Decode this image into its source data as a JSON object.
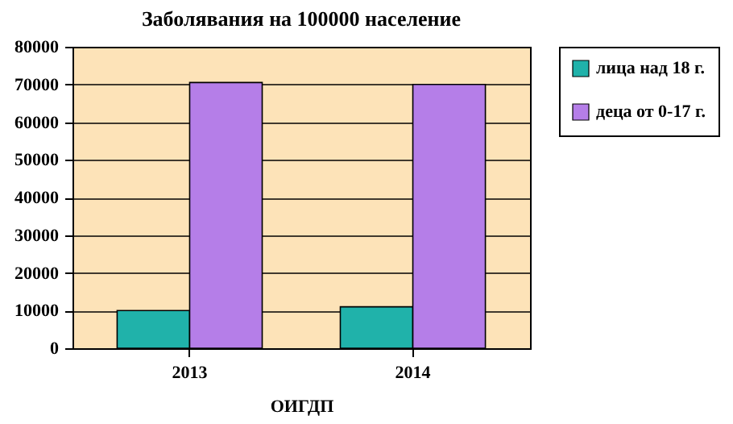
{
  "chart_data": {
    "type": "bar",
    "title": "Заболявания на 100000 население",
    "xlabel": "ОИГДП",
    "categories": [
      "2013",
      "2014"
    ],
    "series": [
      {
        "name": "лица над 18 г.",
        "color": "#20b2aa",
        "values": [
          10000,
          11000
        ]
      },
      {
        "name": "деца от 0-17 г.",
        "color": "#b57ee8",
        "values": [
          70500,
          70000
        ]
      }
    ],
    "ylim": [
      0,
      80000
    ],
    "yticks": [
      0,
      10000,
      20000,
      30000,
      40000,
      50000,
      60000,
      70000,
      80000
    ],
    "grid": "y",
    "legend": "right"
  }
}
